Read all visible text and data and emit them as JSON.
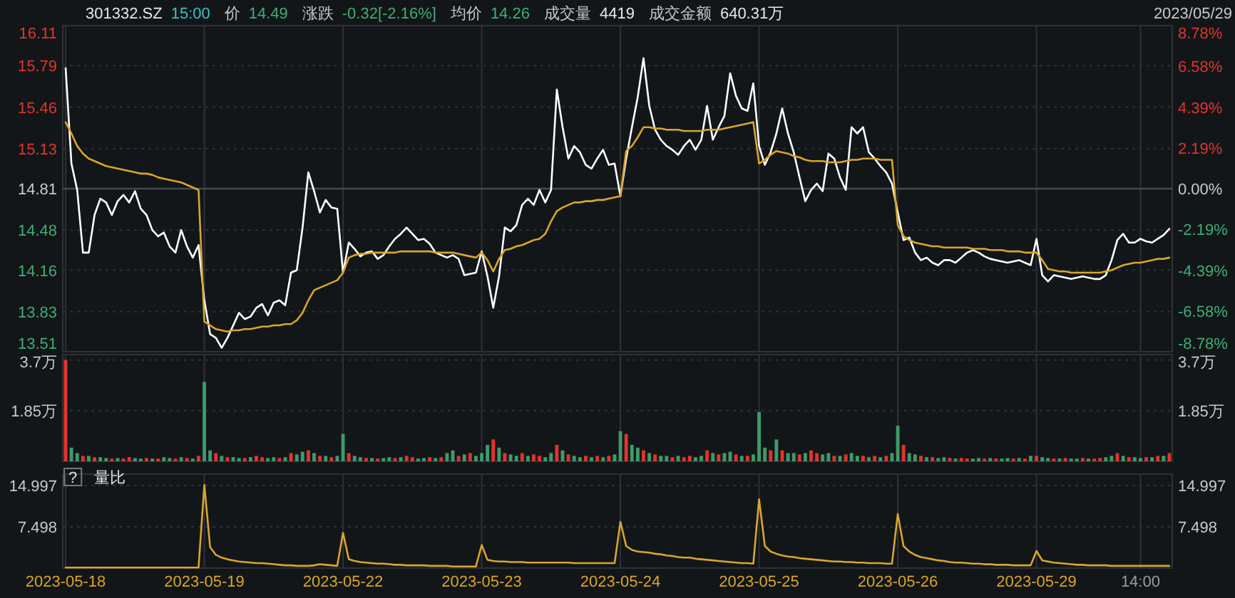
{
  "chart_data": [
    {
      "type": "line",
      "annotations": [
        "301332.SZ",
        "15:00",
        "价",
        "14.49",
        "涨跌",
        "-0.32[-2.16%]",
        "均价",
        "14.26",
        "成交量",
        "4419",
        "成交金额",
        "640.31万",
        "2023/05/29"
      ],
      "categories": [
        null,
        null,
        null,
        null,
        null,
        null,
        null,
        null,
        null,
        null,
        null,
        null,
        null,
        null,
        null,
        null,
        null,
        null,
        null,
        null,
        null,
        null,
        null,
        null,
        null,
        null,
        null,
        null,
        null,
        null,
        null,
        null,
        null,
        null,
        null,
        null,
        null,
        null,
        null,
        null,
        null,
        null,
        null,
        null,
        null,
        null,
        null,
        null,
        null,
        null,
        null,
        null,
        null,
        null,
        null,
        null,
        null,
        null,
        null,
        null,
        null,
        null,
        null,
        null,
        null,
        null,
        null,
        null,
        null,
        null,
        null,
        null,
        null,
        null,
        null,
        null,
        null,
        null,
        null,
        null,
        null,
        null,
        null,
        null,
        null,
        null,
        null,
        null,
        null,
        null,
        null,
        null,
        null,
        null,
        null,
        null,
        null,
        null,
        null,
        null,
        null,
        null,
        null,
        null,
        null,
        null,
        null,
        null,
        null,
        null,
        null,
        null,
        null,
        null,
        null,
        null,
        null,
        null,
        null,
        null,
        null,
        null,
        null,
        null,
        null,
        null,
        null,
        null,
        null,
        null,
        null,
        null,
        null,
        null,
        null,
        null,
        null,
        null,
        null,
        null,
        null,
        null,
        null,
        null,
        null,
        null,
        null,
        null,
        null,
        null,
        null,
        null,
        null,
        null,
        null,
        null,
        null,
        null,
        null,
        null,
        null,
        null,
        null,
        null,
        null,
        null,
        null,
        null,
        null,
        null,
        null,
        null,
        null,
        null,
        null,
        null,
        null,
        null,
        null,
        null,
        null,
        null,
        null,
        null,
        null,
        null,
        null,
        null,
        null,
        null,
        null,
        null
      ],
      "tick_labels": "y",
      "grid": true,
      "ylim": [
        13.51,
        16.11
      ],
      "yticks": [
        13.51,
        13.83,
        14.16,
        14.48,
        14.81,
        15.13,
        15.46,
        15.79,
        16.11
      ],
      "y2lim": [
        -8.78,
        8.78
      ],
      "y2ticks": [
        {
          "value": -8.78,
          "label": "-8.78%"
        },
        {
          "value": -6.58,
          "label": "-6.58%"
        },
        {
          "value": -4.39,
          "label": "-4.39%"
        },
        {
          "value": -2.19,
          "label": "-2.19%"
        },
        {
          "value": 0,
          "label": "0.00%"
        },
        {
          "value": 2.19,
          "label": "2.19%"
        },
        {
          "value": 4.39,
          "label": "4.39%"
        },
        {
          "value": 6.58,
          "label": "6.58%"
        },
        {
          "value": 8.78,
          "label": "8.78%"
        }
      ],
      "ref_lines": [
        {
          "axis": "y",
          "value": 14.81,
          "color": "#45484d"
        }
      ],
      "series": [
        {
          "color": "#ffffff",
          "values": [
            15.77,
            15.01,
            14.8,
            14.3,
            14.3,
            14.6,
            14.73,
            14.7,
            14.6,
            14.71,
            14.76,
            14.7,
            14.79,
            14.65,
            14.6,
            14.48,
            14.43,
            14.46,
            14.35,
            14.3,
            14.48,
            14.35,
            14.26,
            14.36,
            13.92,
            13.65,
            13.62,
            13.54,
            13.62,
            13.72,
            13.82,
            13.77,
            13.79,
            13.86,
            13.89,
            13.8,
            13.9,
            13.92,
            13.88,
            14.14,
            14.16,
            14.5,
            14.94,
            14.79,
            14.62,
            14.72,
            14.66,
            14.65,
            14.14,
            14.38,
            14.33,
            14.27,
            14.3,
            14.31,
            14.25,
            14.28,
            14.35,
            14.41,
            14.45,
            14.5,
            14.45,
            14.4,
            14.41,
            14.37,
            14.3,
            14.28,
            14.26,
            14.28,
            14.25,
            14.12,
            14.13,
            14.14,
            14.31,
            14.11,
            13.86,
            14.11,
            14.5,
            14.47,
            14.52,
            14.68,
            14.73,
            14.68,
            14.8,
            14.7,
            14.8,
            15.6,
            15.3,
            15.05,
            15.15,
            15.1,
            15.0,
            14.97,
            15.05,
            15.12,
            15.0,
            15.01,
            14.75,
            15.05,
            15.3,
            15.54,
            15.85,
            15.47,
            15.28,
            15.2,
            15.15,
            15.12,
            15.08,
            15.15,
            15.2,
            15.12,
            15.2,
            15.47,
            15.2,
            15.3,
            15.39,
            15.73,
            15.55,
            15.45,
            15.43,
            15.65,
            15.15,
            15.0,
            15.1,
            15.25,
            15.45,
            15.25,
            15.1,
            14.9,
            14.71,
            14.8,
            14.85,
            14.79,
            15.09,
            15.05,
            14.9,
            14.8,
            15.3,
            15.25,
            15.3,
            15.1,
            15.05,
            14.99,
            14.94,
            14.85,
            14.62,
            14.4,
            14.42,
            14.3,
            14.24,
            14.26,
            14.22,
            14.2,
            14.24,
            14.24,
            14.22,
            14.26,
            14.3,
            14.32,
            14.3,
            14.27,
            14.25,
            14.24,
            14.23,
            14.22,
            14.23,
            14.24,
            14.22,
            14.2,
            14.41,
            14.12,
            14.07,
            14.12,
            14.11,
            14.1,
            14.09,
            14.1,
            14.11,
            14.1,
            14.09,
            14.09,
            14.12,
            14.24,
            14.4,
            14.45,
            14.38,
            14.38,
            14.41,
            14.39,
            14.38,
            14.41,
            14.44,
            14.49
          ]
        },
        {
          "color": "#d9a52b",
          "values": [
            15.34,
            15.25,
            15.15,
            15.09,
            15.05,
            15.03,
            15.01,
            14.99,
            14.98,
            14.97,
            14.96,
            14.95,
            14.94,
            14.93,
            14.93,
            14.92,
            14.9,
            14.89,
            14.88,
            14.87,
            14.86,
            14.84,
            14.82,
            14.8,
            13.75,
            13.72,
            13.69,
            13.68,
            13.67,
            13.68,
            13.68,
            13.69,
            13.69,
            13.7,
            13.71,
            13.71,
            13.72,
            13.72,
            13.73,
            13.73,
            13.76,
            13.82,
            13.92,
            14.0,
            14.02,
            14.04,
            14.06,
            14.08,
            14.14,
            14.26,
            14.28,
            14.29,
            14.29,
            14.3,
            14.3,
            14.3,
            14.3,
            14.3,
            14.31,
            14.31,
            14.31,
            14.31,
            14.31,
            14.31,
            14.3,
            14.3,
            14.3,
            14.3,
            14.29,
            14.28,
            14.27,
            14.26,
            14.3,
            14.24,
            14.15,
            14.25,
            14.32,
            14.33,
            14.35,
            14.36,
            14.38,
            14.4,
            14.41,
            14.45,
            14.55,
            14.63,
            14.66,
            14.68,
            14.7,
            14.7,
            14.71,
            14.71,
            14.72,
            14.72,
            14.73,
            14.74,
            14.75,
            15.11,
            15.15,
            15.22,
            15.3,
            15.3,
            15.29,
            15.29,
            15.28,
            15.28,
            15.28,
            15.27,
            15.27,
            15.27,
            15.27,
            15.28,
            15.28,
            15.28,
            15.29,
            15.3,
            15.31,
            15.32,
            15.33,
            15.34,
            15.01,
            15.04,
            15.08,
            15.11,
            15.1,
            15.09,
            15.07,
            15.06,
            15.04,
            15.03,
            15.03,
            15.03,
            15.02,
            15.02,
            15.02,
            15.03,
            15.04,
            15.04,
            15.05,
            15.05,
            15.05,
            15.04,
            15.04,
            15.04,
            14.52,
            14.43,
            14.4,
            14.38,
            14.37,
            14.36,
            14.35,
            14.35,
            14.34,
            14.34,
            14.34,
            14.34,
            14.34,
            14.33,
            14.33,
            14.33,
            14.32,
            14.32,
            14.32,
            14.31,
            14.31,
            14.31,
            14.3,
            14.3,
            14.3,
            14.24,
            14.17,
            14.16,
            14.15,
            14.15,
            14.14,
            14.14,
            14.14,
            14.14,
            14.14,
            14.14,
            14.15,
            14.16,
            14.18,
            14.2,
            14.21,
            14.22,
            14.22,
            14.23,
            14.24,
            14.25,
            14.25,
            14.26
          ]
        }
      ]
    },
    {
      "type": "bar",
      "categories": [
        null,
        null,
        null,
        null,
        null,
        null,
        null,
        null,
        null,
        null,
        null,
        null,
        null,
        null,
        null,
        null,
        null,
        null,
        null,
        null,
        null,
        null,
        null,
        null,
        null,
        null,
        null,
        null,
        null,
        null,
        null,
        null,
        null,
        null,
        null,
        null,
        null,
        null,
        null,
        null,
        null,
        null,
        null,
        null,
        null,
        null,
        null,
        null,
        null,
        null,
        null,
        null,
        null,
        null,
        null,
        null,
        null,
        null,
        null,
        null,
        null,
        null,
        null,
        null,
        null,
        null,
        null,
        null,
        null,
        null,
        null,
        null,
        null,
        null,
        null,
        null,
        null,
        null,
        null,
        null,
        null,
        null,
        null,
        null,
        null,
        null,
        null,
        null,
        null,
        null,
        null,
        null,
        null,
        null,
        null,
        null,
        null,
        null,
        null,
        null,
        null,
        null,
        null,
        null,
        null,
        null,
        null,
        null,
        null,
        null,
        null,
        null,
        null,
        null,
        null,
        null,
        null,
        null,
        null,
        null,
        null,
        null,
        null,
        null,
        null,
        null,
        null,
        null,
        null,
        null,
        null,
        null,
        null,
        null,
        null,
        null,
        null,
        null,
        null,
        null,
        null,
        null,
        null,
        null,
        null,
        null,
        null,
        null,
        null,
        null,
        null,
        null,
        null,
        null,
        null,
        null,
        null,
        null,
        null,
        null,
        null,
        null,
        null,
        null,
        null,
        null,
        null,
        null,
        null,
        null,
        null,
        null,
        null,
        null,
        null,
        null,
        null,
        null,
        null,
        null,
        null,
        null,
        null,
        null,
        null,
        null,
        null,
        null,
        null,
        null,
        null,
        null
      ],
      "tick_labels": "y",
      "grid": true,
      "ylim": [
        0,
        3.9
      ],
      "yticks": [
        {
          "value": 1.85,
          "label": "1.85万"
        },
        {
          "value": 3.7,
          "label": "3.7万"
        }
      ],
      "y2lim": [
        0,
        3.9
      ],
      "y2ticks": [
        {
          "value": 1.85,
          "label": "1.85万"
        },
        {
          "value": 3.7,
          "label": "3.7万"
        }
      ],
      "values": [
        3.7,
        0.5,
        0.3,
        0.2,
        0.2,
        0.15,
        0.15,
        0.12,
        0.1,
        0.12,
        0.1,
        0.15,
        0.12,
        0.1,
        0.12,
        0.1,
        0.1,
        0.15,
        0.12,
        0.1,
        0.15,
        0.12,
        0.1,
        0.2,
        2.9,
        0.4,
        0.3,
        0.2,
        0.15,
        0.15,
        0.12,
        0.12,
        0.15,
        0.2,
        0.15,
        0.12,
        0.15,
        0.12,
        0.15,
        0.3,
        0.25,
        0.35,
        0.4,
        0.3,
        0.2,
        0.2,
        0.15,
        0.2,
        1.0,
        0.3,
        0.2,
        0.15,
        0.12,
        0.12,
        0.1,
        0.12,
        0.15,
        0.12,
        0.15,
        0.2,
        0.15,
        0.1,
        0.12,
        0.15,
        0.12,
        0.15,
        0.3,
        0.4,
        0.2,
        0.25,
        0.3,
        0.2,
        0.3,
        0.6,
        0.8,
        0.5,
        0.3,
        0.25,
        0.2,
        0.3,
        0.2,
        0.25,
        0.2,
        0.15,
        0.3,
        0.6,
        0.4,
        0.25,
        0.2,
        0.15,
        0.2,
        0.15,
        0.2,
        0.15,
        0.2,
        0.25,
        1.1,
        1.0,
        0.6,
        0.5,
        0.4,
        0.3,
        0.25,
        0.2,
        0.2,
        0.15,
        0.2,
        0.15,
        0.2,
        0.15,
        0.2,
        0.4,
        0.3,
        0.25,
        0.3,
        0.35,
        0.25,
        0.2,
        0.2,
        0.25,
        1.8,
        0.5,
        0.4,
        0.8,
        0.4,
        0.3,
        0.3,
        0.25,
        0.3,
        0.4,
        0.3,
        0.25,
        0.3,
        0.2,
        0.2,
        0.25,
        0.3,
        0.2,
        0.2,
        0.15,
        0.2,
        0.15,
        0.2,
        0.3,
        1.3,
        0.6,
        0.3,
        0.25,
        0.2,
        0.15,
        0.15,
        0.12,
        0.15,
        0.12,
        0.1,
        0.12,
        0.1,
        0.1,
        0.12,
        0.1,
        0.12,
        0.1,
        0.1,
        0.12,
        0.1,
        0.12,
        0.1,
        0.2,
        0.2,
        0.15,
        0.12,
        0.1,
        0.1,
        0.12,
        0.1,
        0.1,
        0.12,
        0.1,
        0.1,
        0.12,
        0.15,
        0.2,
        0.3,
        0.2,
        0.15,
        0.15,
        0.12,
        0.15,
        0.15,
        0.2,
        0.2,
        0.3
      ],
      "colors": [
        "#e0352b",
        "#3e9b6a",
        "#3e9b6a",
        "#e0352b",
        "#3e9b6a",
        "#e0352b",
        "#3e9b6a",
        "#3e9b6a",
        "#e0352b",
        "#3e9b6a",
        "#e0352b",
        "#e0352b",
        "#3e9b6a",
        "#3e9b6a",
        "#e0352b",
        "#3e9b6a",
        "#e0352b",
        "#3e9b6a",
        "#3e9b6a",
        "#e0352b",
        "#3e9b6a",
        "#e0352b",
        "#3e9b6a",
        "#e0352b",
        "#3e9b6a",
        "#3e9b6a",
        "#e0352b",
        "#3e9b6a",
        "#e0352b",
        "#3e9b6a",
        "#3e9b6a",
        "#e0352b",
        "#3e9b6a",
        "#e0352b",
        "#e0352b",
        "#3e9b6a",
        "#3e9b6a",
        "#e0352b",
        "#3e9b6a",
        "#e0352b",
        "#3e9b6a",
        "#3e9b6a",
        "#e0352b",
        "#3e9b6a",
        "#e0352b",
        "#3e9b6a",
        "#e0352b",
        "#3e9b6a",
        "#3e9b6a",
        "#e0352b",
        "#3e9b6a",
        "#3e9b6a",
        "#e0352b",
        "#3e9b6a",
        "#e0352b",
        "#3e9b6a",
        "#3e9b6a",
        "#e0352b",
        "#3e9b6a",
        "#e0352b",
        "#e0352b",
        "#3e9b6a",
        "#3e9b6a",
        "#e0352b",
        "#3e9b6a",
        "#e0352b",
        "#3e9b6a",
        "#3e9b6a",
        "#e0352b",
        "#3e9b6a",
        "#e0352b",
        "#3e9b6a",
        "#3e9b6a",
        "#3e9b6a",
        "#e0352b",
        "#3e9b6a",
        "#e0352b",
        "#3e9b6a",
        "#3e9b6a",
        "#e0352b",
        "#3e9b6a",
        "#e0352b",
        "#e0352b",
        "#3e9b6a",
        "#3e9b6a",
        "#e0352b",
        "#3e9b6a",
        "#e0352b",
        "#3e9b6a",
        "#3e9b6a",
        "#e0352b",
        "#3e9b6a",
        "#e0352b",
        "#3e9b6a",
        "#e0352b",
        "#3e9b6a",
        "#3e9b6a",
        "#e0352b",
        "#3e9b6a",
        "#3e9b6a",
        "#e0352b",
        "#3e9b6a",
        "#e0352b",
        "#3e9b6a",
        "#3e9b6a",
        "#e0352b",
        "#3e9b6a",
        "#e0352b",
        "#e0352b",
        "#3e9b6a",
        "#3e9b6a",
        "#e0352b",
        "#3e9b6a",
        "#e0352b",
        "#3e9b6a",
        "#3e9b6a",
        "#e0352b",
        "#3e9b6a",
        "#e0352b",
        "#3e9b6a",
        "#3e9b6a",
        "#3e9b6a",
        "#e0352b",
        "#3e9b6a",
        "#e0352b",
        "#3e9b6a",
        "#3e9b6a",
        "#e0352b",
        "#3e9b6a",
        "#e0352b",
        "#e0352b",
        "#3e9b6a",
        "#3e9b6a",
        "#e0352b",
        "#3e9b6a",
        "#e0352b",
        "#3e9b6a",
        "#3e9b6a",
        "#e0352b",
        "#3e9b6a",
        "#e0352b",
        "#3e9b6a",
        "#e0352b",
        "#3e9b6a",
        "#3e9b6a",
        "#e0352b",
        "#3e9b6a",
        "#3e9b6a",
        "#e0352b",
        "#3e9b6a",
        "#e0352b",
        "#3e9b6a",
        "#3e9b6a",
        "#e0352b",
        "#3e9b6a",
        "#e0352b",
        "#e0352b",
        "#3e9b6a",
        "#3e9b6a",
        "#e0352b",
        "#3e9b6a",
        "#e0352b",
        "#3e9b6a",
        "#3e9b6a",
        "#e0352b",
        "#3e9b6a",
        "#e0352b",
        "#3e9b6a",
        "#e0352b",
        "#3e9b6a",
        "#3e9b6a",
        "#e0352b",
        "#3e9b6a",
        "#e0352b",
        "#3e9b6a",
        "#3e9b6a",
        "#e0352b",
        "#3e9b6a",
        "#e0352b",
        "#e0352b",
        "#3e9b6a",
        "#3e9b6a",
        "#e0352b",
        "#3e9b6a",
        "#e0352b",
        "#3e9b6a",
        "#3e9b6a",
        "#e0352b",
        "#3e9b6a",
        "#e0352b",
        "#3e9b6a",
        "#e0352b"
      ]
    },
    {
      "type": "line",
      "title": "量比",
      "annotations": [
        "?"
      ],
      "categories": [
        "2023-05-18",
        null,
        null,
        null,
        null,
        null,
        null,
        null,
        null,
        null,
        null,
        null,
        null,
        null,
        null,
        null,
        null,
        null,
        null,
        null,
        null,
        null,
        null,
        null,
        "2023-05-19",
        null,
        null,
        null,
        null,
        null,
        null,
        null,
        null,
        null,
        null,
        null,
        null,
        null,
        null,
        null,
        null,
        null,
        null,
        null,
        null,
        null,
        null,
        null,
        "2023-05-22",
        null,
        null,
        null,
        null,
        null,
        null,
        null,
        null,
        null,
        null,
        null,
        null,
        null,
        null,
        null,
        null,
        null,
        null,
        null,
        null,
        null,
        null,
        null,
        "2023-05-23",
        null,
        null,
        null,
        null,
        null,
        null,
        null,
        null,
        null,
        null,
        null,
        null,
        null,
        null,
        null,
        null,
        null,
        null,
        null,
        null,
        null,
        null,
        null,
        "2023-05-24",
        null,
        null,
        null,
        null,
        null,
        null,
        null,
        null,
        null,
        null,
        null,
        null,
        null,
        null,
        null,
        null,
        null,
        null,
        null,
        null,
        null,
        null,
        null,
        "2023-05-25",
        null,
        null,
        null,
        null,
        null,
        null,
        null,
        null,
        null,
        null,
        null,
        null,
        null,
        null,
        null,
        null,
        null,
        null,
        null,
        null,
        null,
        null,
        null,
        "2023-05-26",
        null,
        null,
        null,
        null,
        null,
        null,
        null,
        null,
        null,
        null,
        null,
        null,
        null,
        null,
        null,
        null,
        null,
        null,
        null,
        null,
        null,
        null,
        null,
        "2023-05-29",
        null,
        null,
        null,
        null,
        null,
        null,
        null,
        null,
        null,
        null,
        null,
        null,
        null,
        null,
        null,
        null,
        null,
        "14:00",
        null,
        null,
        null,
        null,
        null
      ],
      "grid": true,
      "ylim": [
        0,
        17.05
      ],
      "yticks": [
        7.498,
        14.997
      ],
      "y2lim": [
        0,
        17.05
      ],
      "y2ticks": [
        7.498,
        14.997
      ],
      "series": [
        {
          "color": "#d9a52b",
          "values": [
            0.1,
            0.1,
            0.1,
            0.1,
            0.1,
            0.1,
            0.1,
            0.1,
            0.1,
            0.1,
            0.1,
            0.1,
            0.1,
            0.1,
            0.1,
            0.1,
            0.1,
            0.1,
            0.1,
            0.1,
            0.1,
            0.1,
            0.1,
            0.1,
            15.1,
            3.8,
            2.4,
            1.9,
            1.6,
            1.4,
            1.2,
            1.1,
            1.0,
            0.9,
            0.9,
            0.8,
            0.7,
            0.6,
            0.5,
            0.5,
            0.4,
            0.4,
            0.4,
            0.5,
            0.7,
            0.6,
            0.5,
            0.4,
            6.4,
            1.6,
            1.3,
            1.1,
            1.0,
            0.9,
            0.8,
            0.8,
            0.7,
            0.6,
            0.6,
            0.5,
            0.5,
            0.5,
            0.5,
            0.4,
            0.4,
            0.4,
            0.4,
            0.3,
            0.3,
            0.3,
            0.3,
            0.3,
            4.2,
            1.5,
            1.3,
            1.2,
            1.2,
            1.1,
            1.1,
            1.1,
            1.0,
            1.0,
            1.0,
            1.0,
            1.0,
            1.0,
            1.0,
            1.0,
            0.9,
            0.9,
            0.9,
            0.9,
            0.9,
            0.9,
            0.9,
            0.9,
            8.4,
            4.0,
            3.3,
            3.0,
            2.9,
            2.8,
            2.6,
            2.5,
            2.3,
            2.2,
            2.0,
            1.9,
            1.9,
            1.7,
            1.6,
            1.5,
            1.4,
            1.3,
            1.2,
            1.1,
            1.0,
            0.9,
            0.9,
            0.8,
            12.5,
            4.0,
            3.0,
            2.6,
            2.3,
            2.1,
            2.0,
            1.8,
            1.7,
            1.6,
            1.5,
            1.4,
            1.3,
            1.2,
            1.2,
            1.1,
            1.1,
            1.0,
            1.0,
            0.9,
            0.9,
            0.9,
            0.8,
            0.8,
            9.8,
            4.0,
            3.0,
            2.4,
            2.0,
            1.8,
            1.6,
            1.4,
            1.3,
            1.1,
            1.0,
            1.0,
            0.9,
            0.8,
            0.8,
            0.7,
            0.7,
            0.6,
            0.6,
            0.6,
            0.5,
            0.5,
            0.5,
            0.5,
            3.1,
            1.4,
            1.2,
            1.0,
            0.9,
            0.8,
            0.7,
            0.6,
            0.6,
            0.5,
            0.5,
            0.5,
            0.5,
            0.4,
            0.4,
            0.4,
            0.4,
            0.4,
            0.4,
            0.4,
            0.4,
            0.4,
            0.4,
            0.4
          ]
        }
      ]
    }
  ]
}
